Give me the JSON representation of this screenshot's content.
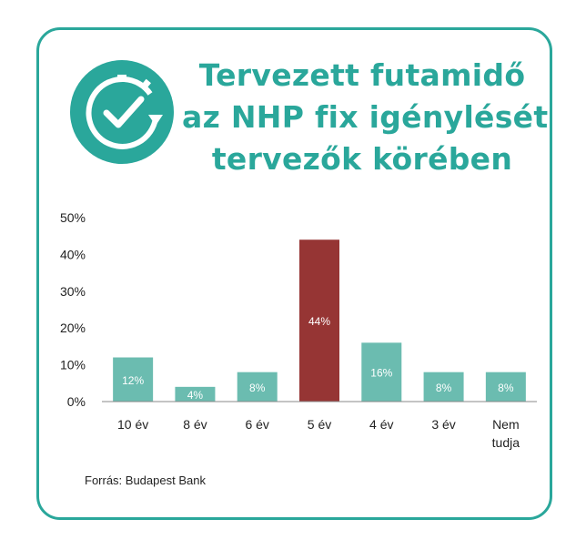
{
  "title_lines": [
    "Tervezett futamidő",
    "az NHP fix igénylését",
    "tervezők körében"
  ],
  "source": "Forrás: Budapest Bank",
  "icon": "clock-check-icon",
  "colors": {
    "accent": "#2aa79b",
    "bar": "#6bbcb0",
    "highlight": "#963534",
    "axis": "#888888",
    "text": "#222222",
    "data_label": "#ffffff"
  },
  "chart_data": {
    "type": "bar",
    "categories": [
      "10 év",
      "8 év",
      "6 év",
      "5 év",
      "4 év",
      "3 év",
      "Nem tudja"
    ],
    "category_lines": [
      [
        "10 év"
      ],
      [
        "8 év"
      ],
      [
        "6 év"
      ],
      [
        "5 év"
      ],
      [
        "4 év"
      ],
      [
        "3 év"
      ],
      [
        "Nem",
        "tudja"
      ]
    ],
    "values": [
      12,
      4,
      8,
      44,
      16,
      8,
      8
    ],
    "value_labels": [
      "12%",
      "4%",
      "8%",
      "44%",
      "16%",
      "8%",
      "8%"
    ],
    "highlight_index": 3,
    "ylim": [
      0,
      50
    ],
    "yticks": [
      0,
      10,
      20,
      30,
      40,
      50
    ],
    "ytick_labels": [
      "0%",
      "10%",
      "20%",
      "30%",
      "40%",
      "50%"
    ],
    "xlabel": "",
    "ylabel": "",
    "grid": false,
    "legend": "none"
  }
}
